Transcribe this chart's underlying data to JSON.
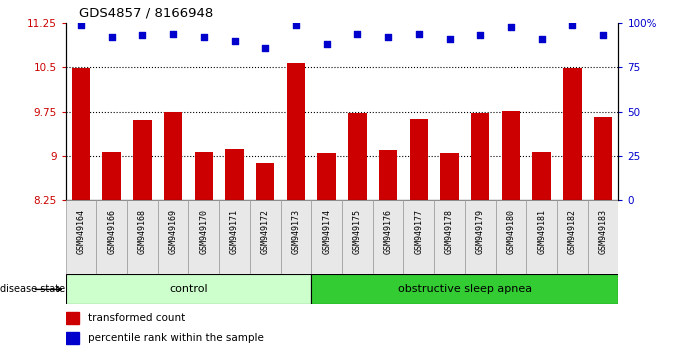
{
  "title": "GDS4857 / 8166948",
  "samples": [
    "GSM949164",
    "GSM949166",
    "GSM949168",
    "GSM949169",
    "GSM949170",
    "GSM949171",
    "GSM949172",
    "GSM949173",
    "GSM949174",
    "GSM949175",
    "GSM949176",
    "GSM949177",
    "GSM949178",
    "GSM949179",
    "GSM949180",
    "GSM949181",
    "GSM949182",
    "GSM949183"
  ],
  "bar_values": [
    10.48,
    9.07,
    9.6,
    9.75,
    9.07,
    9.12,
    8.87,
    10.57,
    9.04,
    9.72,
    9.1,
    9.63,
    9.05,
    9.72,
    9.76,
    9.07,
    10.48,
    9.65
  ],
  "dot_values": [
    99,
    92,
    93,
    94,
    92,
    90,
    86,
    99,
    88,
    94,
    92,
    94,
    91,
    93,
    98,
    91,
    99,
    93
  ],
  "y_min": 8.25,
  "y_max": 11.25,
  "y_ticks": [
    8.25,
    9.0,
    9.75,
    10.5,
    11.25
  ],
  "y_tick_labels": [
    "8.25",
    "9",
    "9.75",
    "10.5",
    "11.25"
  ],
  "y2_ticks": [
    0,
    25,
    50,
    75,
    100
  ],
  "y2_tick_labels": [
    "0",
    "25",
    "50",
    "75",
    "100%"
  ],
  "dotted_lines": [
    9.0,
    9.75,
    10.5
  ],
  "bar_color": "#CC0000",
  "dot_color": "#0000CC",
  "bar_bottom": 8.25,
  "control_count": 8,
  "control_label": "control",
  "osa_label": "obstructive sleep apnea",
  "control_bg": "#CCFFCC",
  "osa_bg": "#33CC33",
  "legend_bar_label": "transformed count",
  "legend_dot_label": "percentile rank within the sample",
  "disease_state_label": "disease state",
  "xlim_left": -0.5,
  "xlim_right": 17.5
}
